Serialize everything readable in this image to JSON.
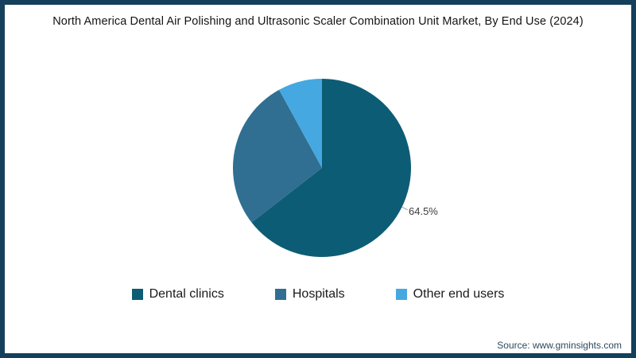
{
  "chart_data": {
    "type": "pie",
    "title": "North America Dental Air Polishing and Ultrasonic Scaler Combination Unit Market, By End Use (2024)",
    "slices": [
      {
        "label": "Dental clinics",
        "value": 64.5,
        "color": "#0d5c75",
        "data_label": "64.5%"
      },
      {
        "label": "Hospitals",
        "value": 27.5,
        "color": "#306f91",
        "data_label": ""
      },
      {
        "label": "Other end users",
        "value": 8.0,
        "color": "#45a8e0",
        "data_label": ""
      }
    ],
    "start_angle": "top",
    "direction": "clockwise",
    "legend_position": "bottom"
  },
  "footer": {
    "source": "Source: www.gminsights.com"
  },
  "theme": {
    "border_color": "#14405c",
    "background": "#ffffff",
    "data_label_color": "#3c3c3c",
    "leader_line_color": "#9b9b9b"
  }
}
